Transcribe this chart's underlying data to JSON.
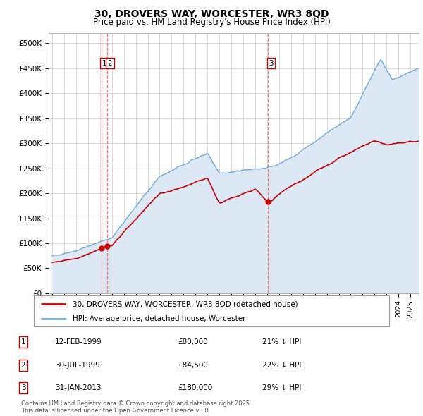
{
  "title": "30, DROVERS WAY, WORCESTER, WR3 8QD",
  "subtitle": "Price paid vs. HM Land Registry's House Price Index (HPI)",
  "ylim": [
    0,
    520000
  ],
  "yticks": [
    0,
    50000,
    100000,
    150000,
    200000,
    250000,
    300000,
    350000,
    400000,
    450000,
    500000
  ],
  "ytick_labels": [
    "£0",
    "£50K",
    "£100K",
    "£150K",
    "£200K",
    "£250K",
    "£300K",
    "£350K",
    "£400K",
    "£450K",
    "£500K"
  ],
  "hpi_color": "#6fa8dc",
  "hpi_fill_color": "#dce9f5",
  "price_color": "#cc0000",
  "vline_color": "#ff6666",
  "background_color": "#ffffff",
  "fig_background": "#ffffff",
  "transactions": [
    {
      "date_num": 1999.12,
      "price": 80000,
      "label": "1"
    },
    {
      "date_num": 1999.58,
      "price": 84500,
      "label": "2"
    },
    {
      "date_num": 2013.08,
      "price": 180000,
      "label": "3"
    }
  ],
  "legend_line1": "30, DROVERS WAY, WORCESTER, WR3 8QD (detached house)",
  "legend_line2": "HPI: Average price, detached house, Worcester",
  "table_rows": [
    {
      "num": "1",
      "date": "12-FEB-1999",
      "price": "£80,000",
      "note": "21% ↓ HPI"
    },
    {
      "num": "2",
      "date": "30-JUL-1999",
      "price": "£84,500",
      "note": "22% ↓ HPI"
    },
    {
      "num": "3",
      "date": "31-JAN-2013",
      "price": "£180,000",
      "note": "29% ↓ HPI"
    }
  ],
  "footer": "Contains HM Land Registry data © Crown copyright and database right 2025.\nThis data is licensed under the Open Government Licence v3.0."
}
